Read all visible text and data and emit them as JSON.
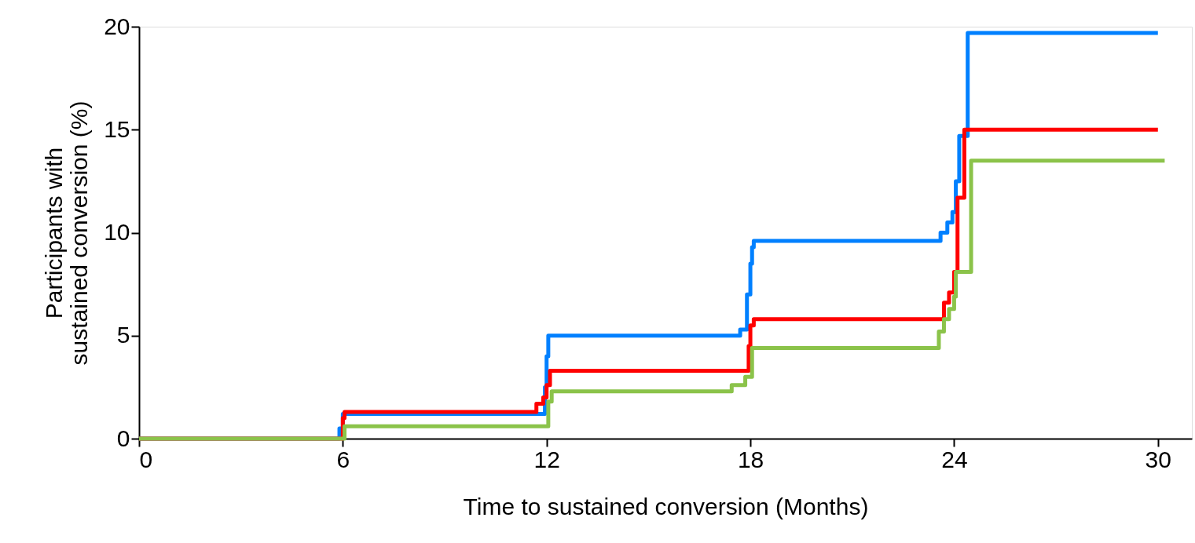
{
  "chart_data": {
    "type": "step",
    "xlabel": "Time to sustained conversion (Months)",
    "ylabel": "Participants with\nsustained conversion (%)",
    "xlim": [
      0,
      31
    ],
    "ylim": [
      0,
      20
    ],
    "xticks": [
      0,
      6,
      12,
      18,
      24,
      30
    ],
    "yticks": [
      0,
      5,
      10,
      15,
      20
    ],
    "grid": false,
    "legend": false,
    "marker": "none",
    "line_style": "solid",
    "series": [
      {
        "color": "#0080ff",
        "x": [
          0,
          5.9,
          6.0,
          11.95,
          12.0,
          12.05,
          17.7,
          17.9,
          18.0,
          18.05,
          18.1,
          23.6,
          23.8,
          23.95,
          24.05,
          24.15,
          24.4,
          30
        ],
        "values": [
          0,
          0.5,
          1.2,
          2.5,
          4.0,
          5.0,
          5.3,
          7.0,
          8.5,
          9.3,
          9.6,
          10.0,
          10.5,
          11.0,
          12.5,
          14.7,
          19.7,
          19.7
        ]
      },
      {
        "color": "#ff0000",
        "x": [
          0,
          6.0,
          6.05,
          11.7,
          11.9,
          12.0,
          12.1,
          17.95,
          18.0,
          18.1,
          23.7,
          23.85,
          24.0,
          24.1,
          24.3,
          30
        ],
        "values": [
          0,
          1.0,
          1.3,
          1.7,
          2.0,
          2.6,
          3.3,
          4.5,
          5.5,
          5.8,
          6.6,
          7.1,
          8.1,
          11.7,
          15.0,
          15.0
        ]
      },
      {
        "color": "#8bc34a",
        "x": [
          0,
          6.05,
          12.05,
          12.15,
          17.45,
          17.85,
          18.05,
          23.55,
          23.7,
          23.85,
          24.0,
          24.05,
          24.5,
          30.2
        ],
        "values": [
          0,
          0.6,
          1.8,
          2.3,
          2.6,
          3.0,
          4.4,
          5.2,
          5.8,
          6.3,
          6.9,
          8.1,
          13.5,
          13.5
        ]
      }
    ]
  }
}
